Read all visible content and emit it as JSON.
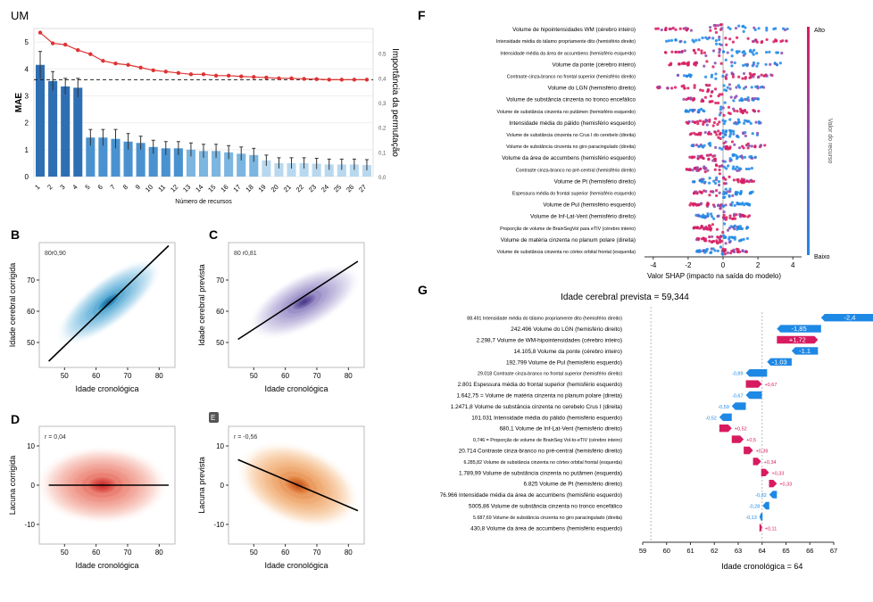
{
  "panel_labels": {
    "A": "UM",
    "B": "B",
    "C": "C",
    "D": "D",
    "E": "E",
    "F": "F",
    "G": "G"
  },
  "chart_data": [
    {
      "id": "A",
      "type": "bar",
      "xlabel": "Número de recursos",
      "ylabel": "MAE",
      "y2label": "Importância da permutação",
      "categories": [
        "1",
        "2",
        "3",
        "4",
        "5",
        "6",
        "7",
        "8",
        "9",
        "10",
        "11",
        "12",
        "13",
        "14",
        "15",
        "16",
        "17",
        "18",
        "19",
        "20",
        "21",
        "22",
        "23",
        "24",
        "25",
        "26",
        "27"
      ],
      "y_ticks": [
        "0",
        "1",
        "2",
        "3",
        "4",
        "5"
      ],
      "y2_ticks": [
        "0,0",
        "0,1",
        "0,2",
        "0,3",
        "0,4",
        "0,5"
      ],
      "ylim": [
        0,
        5.5
      ],
      "series": [
        {
          "kind": "bar",
          "values": [
            4.15,
            3.55,
            3.35,
            3.3,
            1.45,
            1.45,
            1.4,
            1.3,
            1.25,
            1.1,
            1.05,
            1.05,
            1.0,
            0.95,
            0.95,
            0.9,
            0.85,
            0.8,
            0.6,
            0.5,
            0.5,
            0.5,
            0.48,
            0.45,
            0.45,
            0.45,
            0.43
          ],
          "errors": [
            0.5,
            0.35,
            0.3,
            0.35,
            0.3,
            0.3,
            0.35,
            0.3,
            0.25,
            0.25,
            0.25,
            0.25,
            0.25,
            0.25,
            0.25,
            0.25,
            0.25,
            0.25,
            0.2,
            0.2,
            0.2,
            0.2,
            0.2,
            0.2,
            0.2,
            0.2,
            0.2
          ]
        },
        {
          "kind": "line",
          "values": [
            5.35,
            4.95,
            4.9,
            4.7,
            4.55,
            4.3,
            4.2,
            4.15,
            4.05,
            3.95,
            3.9,
            3.85,
            3.8,
            3.8,
            3.75,
            3.75,
            3.72,
            3.7,
            3.68,
            3.65,
            3.65,
            3.63,
            3.62,
            3.6,
            3.6,
            3.6,
            3.6
          ]
        }
      ],
      "reference_line": 3.6
    },
    {
      "id": "B",
      "type": "scatter",
      "xlabel": "Idade cronológica",
      "ylabel": "Idade cerebral corrigida",
      "annotation": "80r0,90",
      "x_ticks": [
        "50",
        "60",
        "70",
        "80"
      ],
      "y_ticks": [
        "50",
        "60",
        "70"
      ],
      "xlim": [
        42,
        85
      ],
      "ylim": [
        42,
        82
      ],
      "fit_line": [
        [
          45,
          44
        ],
        [
          83,
          81
        ]
      ]
    },
    {
      "id": "C",
      "type": "scatter",
      "xlabel": "Idade cronológica",
      "ylabel": "Idade cerebral prevista",
      "annotation": "80 r0,81",
      "x_ticks": [
        "50",
        "60",
        "70",
        "80"
      ],
      "y_ticks": [
        "50",
        "60",
        "70"
      ],
      "xlim": [
        42,
        85
      ],
      "ylim": [
        42,
        82
      ],
      "fit_line": [
        [
          45,
          51
        ],
        [
          83,
          76
        ]
      ]
    },
    {
      "id": "D",
      "type": "scatter",
      "xlabel": "Idade cronológica",
      "ylabel": "Lacuna corrigida",
      "annotation": "r = 0,04",
      "x_ticks": [
        "50",
        "60",
        "70",
        "80"
      ],
      "y_ticks": [
        "10",
        "0",
        "-10"
      ],
      "xlim": [
        42,
        85
      ],
      "ylim": [
        -15,
        15
      ],
      "fit_line": [
        [
          45,
          0
        ],
        [
          83,
          0
        ]
      ]
    },
    {
      "id": "E",
      "type": "scatter",
      "xlabel": "Idade cronológica",
      "ylabel": "Lacuna prevista",
      "annotation": "r = -0,56",
      "x_ticks": [
        "50",
        "60",
        "70",
        "80"
      ],
      "y_ticks": [
        "10",
        "0",
        "-10"
      ],
      "xlim": [
        42,
        85
      ],
      "ylim": [
        -15,
        15
      ],
      "fit_line": [
        [
          45,
          6.5
        ],
        [
          83,
          -6.5
        ]
      ]
    },
    {
      "id": "F",
      "type": "scatter",
      "xlabel": "Valor SHAP (impacto na saída do modelo)",
      "x_ticks": [
        "-4",
        "-2",
        "0",
        "2",
        "4"
      ],
      "xlim": [
        -4.5,
        4.5
      ],
      "colorbar": {
        "label": "Valor do recurso",
        "high": "Alto",
        "low": "Baixo",
        "high_color": "#d81b60",
        "low_color": "#1e88e5"
      },
      "features": [
        "Volume de hipointensidades WM (cérebro inteiro)",
        "Intensidade média do tálamo propriamente dito (hemisfério direito)",
        "Intensidade média da área de accumbens (hemisfério esquerdo)",
        "Volume da ponte (cérebro inteiro)",
        "Contraste cinza-branco no frontal superior (hemisfério direito)",
        "Volume do LGN (hemisfério direito)",
        "Volume de substância cinzenta no tronco encefálico",
        "Volume de substância cinzenta no putâmen (hemisfério esquerdo)",
        "Intensidade média do pálido (hemisfério esquerdo)",
        "Volume de substância cinzenta no Crus I do cerebelo (direita)",
        "Volume de substância cinzenta no giro paracingulado (direita)",
        "Volume da área de accumbens (hemisfério esquerdo)",
        "Contraste cinza-branco no pré-central (hemisfério direito)",
        "Volume de Pt (hemisfério direito)",
        "Espessura média do frontal superior (hemisfério esquerdo)",
        "Volume de Pul (hemisfério esquerdo)",
        "Volume de Inf-Lat-Vent (hemisfério direito)",
        "Proporção de volume de BrainSegVol para eTIV (cérebro inteiro)",
        "Volume de matéria cinzenta no planum polare (direita)",
        "Volume de substância cinzenta no córtex orbital frontal (esquerda)"
      ],
      "spread": [
        [
          -3.9,
          3.8
        ],
        [
          -3.3,
          3.7
        ],
        [
          -3.3,
          3.4
        ],
        [
          -3.1,
          3.3
        ],
        [
          -2.6,
          2.9
        ],
        [
          -3.8,
          2.4
        ],
        [
          -2.3,
          2.1
        ],
        [
          -2.2,
          2.1
        ],
        [
          -2.1,
          2.2
        ],
        [
          -1.9,
          2.0
        ],
        [
          -1.9,
          2.4
        ],
        [
          -1.9,
          1.9
        ],
        [
          -2.1,
          1.7
        ],
        [
          -1.8,
          1.8
        ],
        [
          -1.7,
          1.7
        ],
        [
          -1.9,
          1.6
        ],
        [
          -1.6,
          1.6
        ],
        [
          -1.7,
          1.5
        ],
        [
          -1.6,
          1.5
        ],
        [
          -1.6,
          1.4
        ]
      ]
    },
    {
      "id": "G",
      "type": "bar",
      "title": "Idade cerebral prevista = 59,344",
      "xlabel": "Idade cronológica = 64",
      "x_ticks": [
        "59",
        "60",
        "61",
        "62",
        "63",
        "64",
        "65",
        "66",
        "67"
      ],
      "xlim": [
        59,
        67
      ],
      "rows": [
        {
          "value": "88.491",
          "feature": "Intensidade média do tálamo propriamente dito (hemisfério direito)",
          "shap": -2.4,
          "label": "-2,4"
        },
        {
          "value": "242.496",
          "feature": "Volume do LGN (hemisfério direito)",
          "shap": -1.85,
          "label": "-1,85"
        },
        {
          "value": "2.298,7",
          "feature": "Volume de WM-hipointensidades (cérebro inteiro)",
          "shap": 1.72,
          "label": "+1,72"
        },
        {
          "value": "14.105,8",
          "feature": "Volume da ponte (cérebro inteiro)",
          "shap": -1.1,
          "label": "-1.1"
        },
        {
          "value": "192.799",
          "feature": "Volume de Pul (hemisfério esquerdo)",
          "shap": -1.03,
          "label": "-1.03"
        },
        {
          "value": "29.018",
          "feature": "Contraste cinza-branco no frontal superior (hemisfério direito)",
          "shap": -0.89,
          "label": "-0,89"
        },
        {
          "value": "2.801",
          "feature": "Espessura média do frontal superior (hemisfério esquerdo)",
          "shap": 0.67,
          "label": "+0,67"
        },
        {
          "value": "1.642,75 =",
          "feature": "Volume de matéria cinzenta no planum polare (direita)",
          "shap": -0.67,
          "label": "-0,67"
        },
        {
          "value": "1.2471,8",
          "feature": "Volume de substância cinzenta no cerebelo Crus I (direita)",
          "shap": -0.59,
          "label": "-0,59"
        },
        {
          "value": "101.031",
          "feature": "Intensidade média do pálido (hemisfério esquerdo)",
          "shap": -0.52,
          "label": "-0,52"
        },
        {
          "value": "680,1",
          "feature": "Volume de Inf-Lat-Vent (hemisfério direito)",
          "shap": 0.52,
          "label": "+0,52"
        },
        {
          "value": "0,746 =",
          "feature": "Proporção de volume de BrainSeg Vol-to-eTIV (cérebro inteiro)",
          "shap": 0.5,
          "label": "+0,5"
        },
        {
          "value": "20.714",
          "feature": "Contraste cinza-branco no pré-central (hemisfério direito)",
          "shap": 0.39,
          "label": "+0,39"
        },
        {
          "value": "6.285,82",
          "feature": "Volume de substância cinzenta no córtex orbital frontal (esquerda)",
          "shap": 0.34,
          "label": "+0,34"
        },
        {
          "value": "1.789,99",
          "feature": "Volume de substância cinzenta no putâmen (esquerda)",
          "shap": 0.33,
          "label": "+0,33"
        },
        {
          "value": "6.825",
          "feature": "Volume de Pt (hemisfério direito)",
          "shap": 0.33,
          "label": "+0,33"
        },
        {
          "value": "76.966",
          "feature": "Intensidade média da área de accumbens (hemisfério esquerdo)",
          "shap": -0.32,
          "label": "-0,32"
        },
        {
          "value": "5005,86",
          "feature": "Volume de substância cinzenta no tronco encefálico",
          "shap": -0.28,
          "label": "-0,28"
        },
        {
          "value": "5.687,69",
          "feature": "Volume de substância cinzenta no giro paracingulado (direita)",
          "shap": -0.13,
          "label": "-0,13"
        },
        {
          "value": "430,8",
          "feature": "Volume da área de accumbens (hemisfério esquerdo)",
          "shap": 0.11,
          "label": "+0,11"
        }
      ]
    }
  ]
}
